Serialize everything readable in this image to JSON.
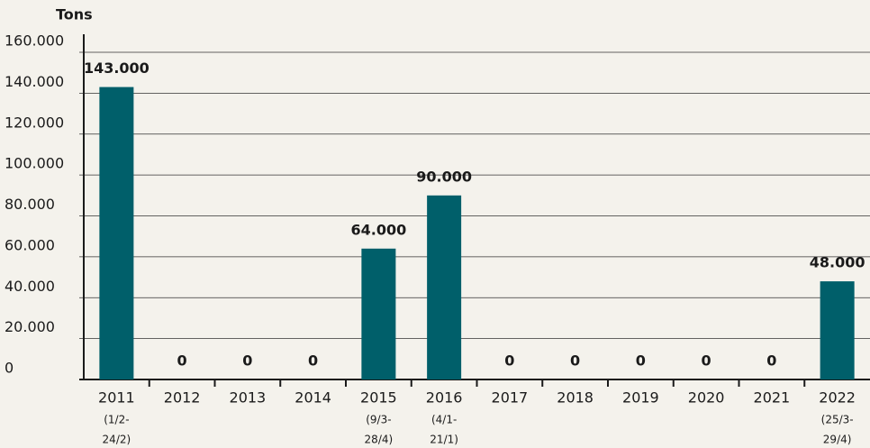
{
  "chart_data": {
    "type": "bar",
    "y_label": "Tons",
    "categories": [
      "2011",
      "2012",
      "2013",
      "2014",
      "2015",
      "2016",
      "2017",
      "2018",
      "2019",
      "2020",
      "2021",
      "2022"
    ],
    "category_notes": [
      [
        "(1/2-",
        "24/2)"
      ],
      null,
      null,
      null,
      [
        "(9/3-",
        "28/4)"
      ],
      [
        "(4/1-",
        "21/1)"
      ],
      null,
      null,
      null,
      null,
      null,
      [
        "(25/3-",
        "29/4)"
      ]
    ],
    "values": [
      143000,
      0,
      0,
      0,
      64000,
      90000,
      0,
      0,
      0,
      0,
      0,
      48000
    ],
    "value_labels": [
      "143.000",
      "0",
      "0",
      "0",
      "64.000",
      "90.000",
      "0",
      "0",
      "0",
      "0",
      "0",
      "48.000"
    ],
    "color": "#005f6a",
    "ylim": [
      0,
      160000
    ],
    "yticks": [
      0,
      {
        "value": 20000,
        "label": "20.000"
      },
      {
        "value": 40000,
        "label": "40.000"
      },
      {
        "value": 60000,
        "label": "60.000"
      },
      {
        "value": 80000,
        "label": "80.000"
      },
      {
        "value": 100000,
        "label": "100.000"
      },
      {
        "value": 120000,
        "label": "120.000"
      },
      {
        "value": 140000,
        "label": "140.000"
      },
      {
        "value": 160000,
        "label": "160.000"
      }
    ],
    "grid": true
  }
}
